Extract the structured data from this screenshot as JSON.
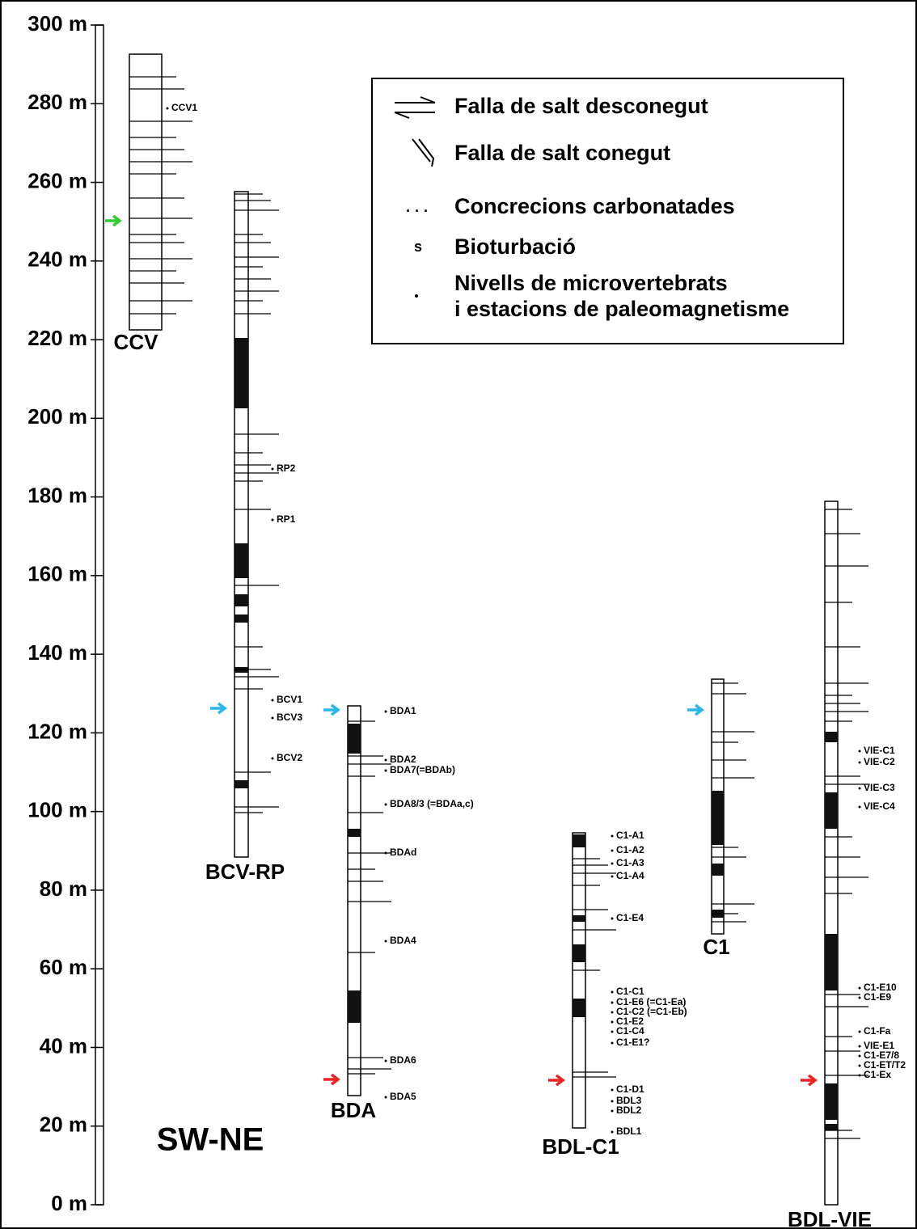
{
  "title": "SW-NE",
  "scale": {
    "ticks": [
      "300 m",
      "280 m",
      "260 m",
      "240 m",
      "220 m",
      "200 m",
      "180 m",
      "160 m",
      "140 m",
      "120 m",
      "100 m",
      "80 m",
      "60 m",
      "40 m",
      "20 m",
      "0 m"
    ]
  },
  "legend": {
    "items": [
      "Falla de salt desconegut",
      "Falla de salt conegut",
      "Concrecions carbonatades",
      "Bioturbació",
      "Nivells de microvertebrats",
      "i estacions de paleomagnetisme"
    ]
  },
  "columns": [
    {
      "name": "CCV",
      "samples": [
        "CCV1"
      ]
    },
    {
      "name": "BCV-RP",
      "samples": [
        "RP2",
        "RP1",
        "BCV1",
        "BCV3",
        "BCV2"
      ]
    },
    {
      "name": "BDA",
      "samples": [
        "BDA1",
        "BDA2",
        "BDA7(=BDAb)",
        "BDA8/3 (=BDAa,c)",
        "BDAd",
        "BDA4",
        "BDA6",
        "BDA5"
      ]
    },
    {
      "name": "BDL-C1",
      "samples": [
        "C1-A1",
        "C1-A2",
        "C1-A3",
        "C1-A4",
        "C1-E4",
        "C1-C1",
        "C1-E6 (=C1-Ea)",
        "C1-C2 (=C1-Eb)",
        "C1-E2",
        "C1-C4",
        "C1-E1?",
        "C1-D1",
        "BDL3",
        "BDL2",
        "BDL1"
      ]
    },
    {
      "name": "C1",
      "samples": []
    },
    {
      "name": "BDL-VIE",
      "samples": [
        "VIE-C1",
        "VIE-C2",
        "VIE-C3",
        "VIE-C4",
        "C1-E10",
        "C1-E9",
        "C1-Fa",
        "VIE-E1",
        "C1-E7/8",
        "C1-ET/T2",
        "C1-Ex"
      ]
    }
  ]
}
